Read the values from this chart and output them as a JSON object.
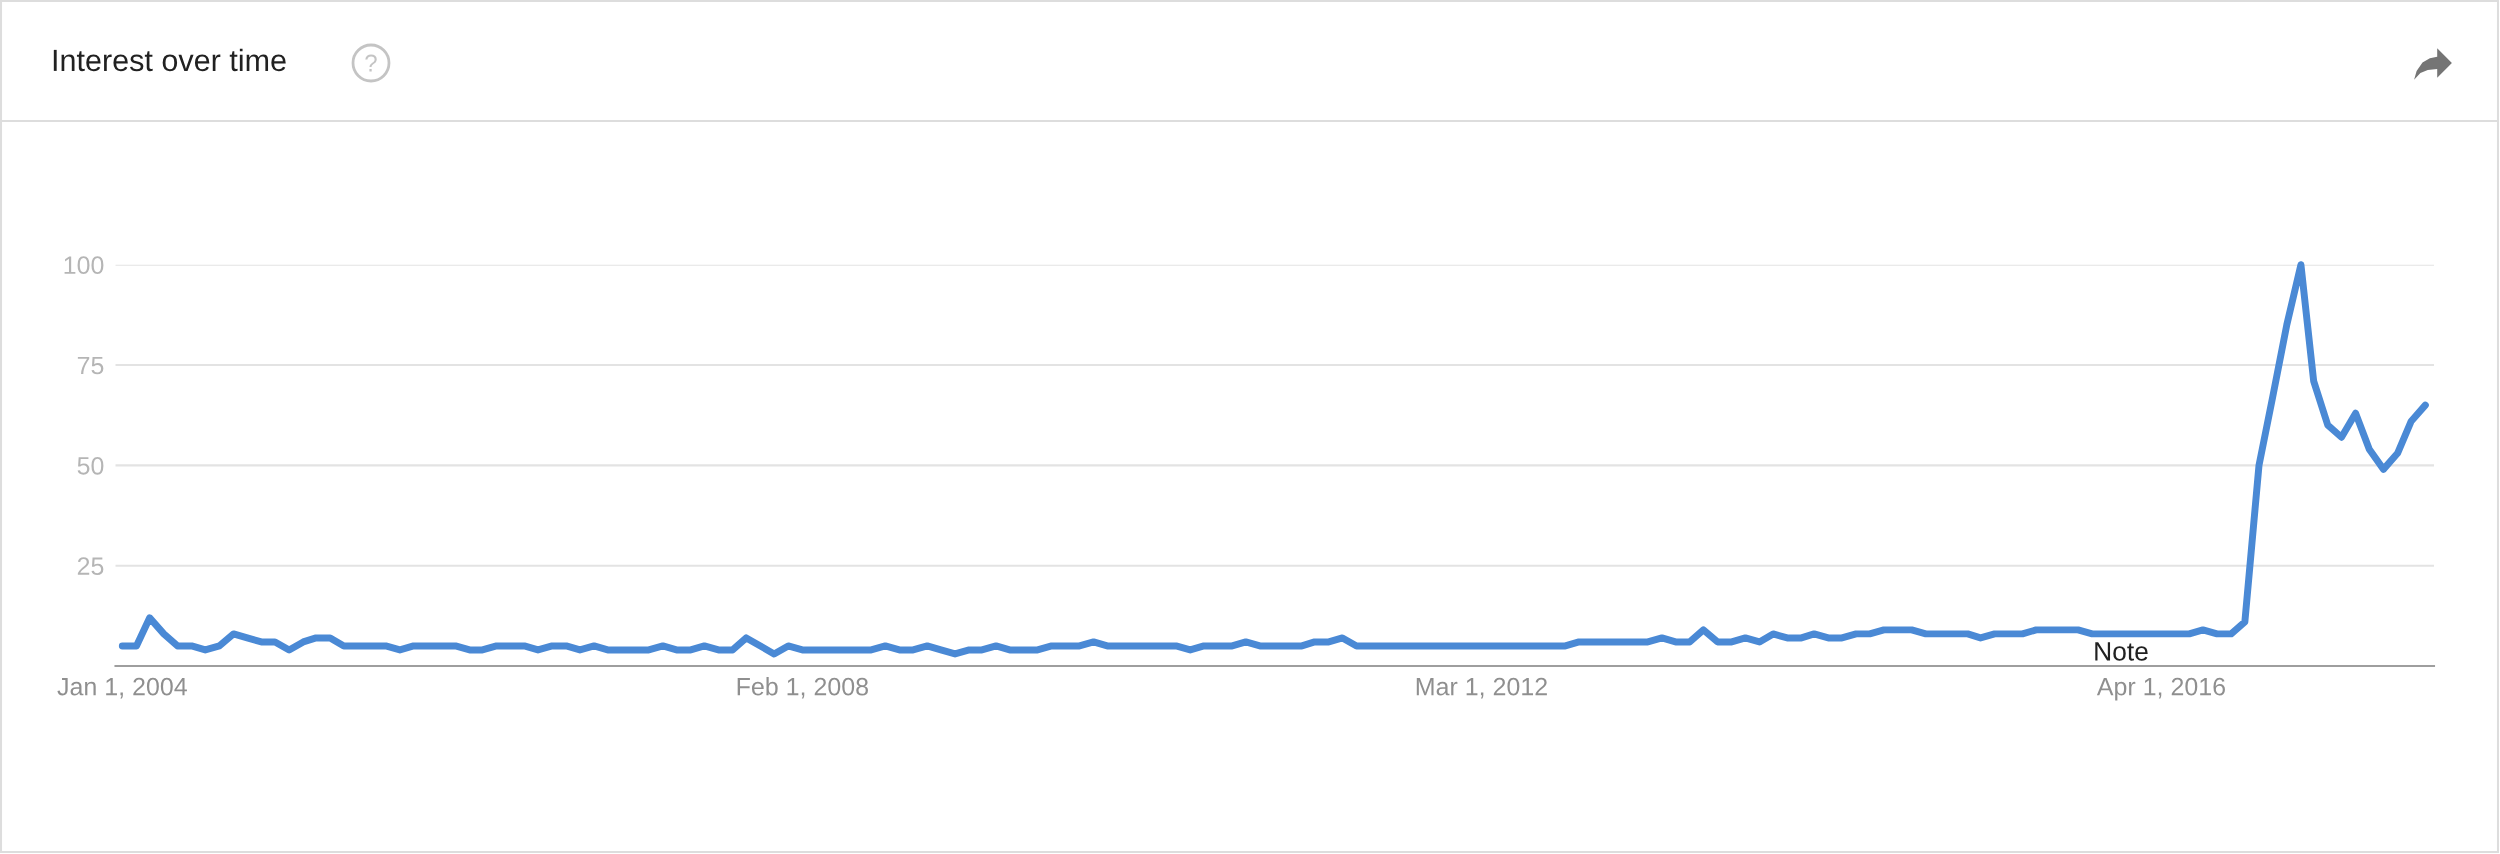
{
  "chart_data": {
    "type": "line",
    "title": "Interest over time",
    "color": "#4a89d5",
    "x": [
      "2004-01",
      "2004-02",
      "2004-03",
      "2004-04",
      "2004-05",
      "2004-06",
      "2004-07",
      "2004-08",
      "2004-09",
      "2004-10",
      "2004-11",
      "2004-12",
      "2005-01",
      "2005-02",
      "2005-03",
      "2005-04",
      "2005-05",
      "2005-06",
      "2005-07",
      "2005-08",
      "2005-09",
      "2005-10",
      "2005-11",
      "2005-12",
      "2006-01",
      "2006-02",
      "2006-03",
      "2006-04",
      "2006-05",
      "2006-06",
      "2006-07",
      "2006-08",
      "2006-09",
      "2006-10",
      "2006-11",
      "2006-12",
      "2007-01",
      "2007-02",
      "2007-03",
      "2007-04",
      "2007-05",
      "2007-06",
      "2007-07",
      "2007-08",
      "2007-09",
      "2007-10",
      "2007-11",
      "2007-12",
      "2008-01",
      "2008-02",
      "2008-03",
      "2008-04",
      "2008-05",
      "2008-06",
      "2008-07",
      "2008-08",
      "2008-09",
      "2008-10",
      "2008-11",
      "2008-12",
      "2009-01",
      "2009-02",
      "2009-03",
      "2009-04",
      "2009-05",
      "2009-06",
      "2009-07",
      "2009-08",
      "2009-09",
      "2009-10",
      "2009-11",
      "2009-12",
      "2010-01",
      "2010-02",
      "2010-03",
      "2010-04",
      "2010-05",
      "2010-06",
      "2010-07",
      "2010-08",
      "2010-09",
      "2010-10",
      "2010-11",
      "2010-12",
      "2011-01",
      "2011-02",
      "2011-03",
      "2011-04",
      "2011-05",
      "2011-06",
      "2012-09",
      "2012-10",
      "2012-11",
      "2012-12",
      "2013-01",
      "2013-02",
      "2013-03",
      "2013-04",
      "2013-05",
      "2013-06",
      "2013-07",
      "2013-08",
      "2013-09",
      "2013-10",
      "2013-11",
      "2013-12",
      "2014-01",
      "2014-02",
      "2014-03",
      "2014-04",
      "2014-05",
      "2014-06",
      "2014-07",
      "2014-08",
      "2014-09",
      "2014-10",
      "2014-11",
      "2014-12",
      "2015-01",
      "2015-02",
      "2015-03",
      "2015-04",
      "2015-05",
      "2015-06",
      "2015-07",
      "2015-08",
      "2015-09",
      "2015-10",
      "2015-11",
      "2016-06",
      "2016-07",
      "2016-08",
      "2016-09",
      "2016-10",
      "2016-11",
      "2016-12",
      "2017-01",
      "2017-02",
      "2017-03",
      "2017-04",
      "2017-05",
      "2017-06",
      "2017-07",
      "2017-08",
      "2017-09",
      "2017-10",
      "2017-11"
    ],
    "values": [
      5,
      5,
      12,
      8,
      5,
      5,
      4,
      5,
      8,
      7,
      6,
      6,
      4,
      6,
      7,
      7,
      5,
      5,
      5,
      5,
      4,
      5,
      5,
      5,
      5,
      4,
      4,
      5,
      5,
      5,
      4,
      5,
      5,
      4,
      5,
      4,
      4,
      4,
      4,
      5,
      4,
      4,
      5,
      4,
      4,
      7,
      5,
      3,
      5,
      4,
      4,
      4,
      4,
      4,
      4,
      5,
      4,
      4,
      5,
      4,
      3,
      4,
      4,
      5,
      4,
      4,
      4,
      5,
      5,
      5,
      6,
      5,
      5,
      5,
      5,
      5,
      5,
      4,
      5,
      5,
      5,
      6,
      5,
      5,
      5,
      5,
      6,
      6,
      7,
      5,
      5,
      6,
      6,
      6,
      6,
      6,
      6,
      7,
      6,
      6,
      9,
      6,
      6,
      7,
      6,
      8,
      7,
      7,
      8,
      7,
      7,
      8,
      8,
      9,
      9,
      9,
      8,
      8,
      8,
      8,
      7,
      8,
      8,
      8,
      9,
      9,
      9,
      9,
      8,
      8,
      9,
      8,
      8,
      11,
      50,
      67,
      85,
      100,
      71,
      60,
      57,
      63,
      54,
      49,
      53,
      61,
      65
    ],
    "xlim": [
      "2003-12-17",
      "2017-11-20"
    ],
    "xticks": [
      {
        "value": "2004-01-01",
        "label": "Jan 1, 2004"
      },
      {
        "value": "2008-02-01",
        "label": "Feb 1, 2008"
      },
      {
        "value": "2012-03-01",
        "label": "Mar 1, 2012"
      },
      {
        "value": "2016-04-01",
        "label": "Apr 1, 2016"
      }
    ],
    "ylim": [
      0,
      100
    ],
    "yticks": [
      25,
      50,
      75,
      100
    ],
    "grid": "y",
    "annotations": [
      "Note"
    ]
  }
}
